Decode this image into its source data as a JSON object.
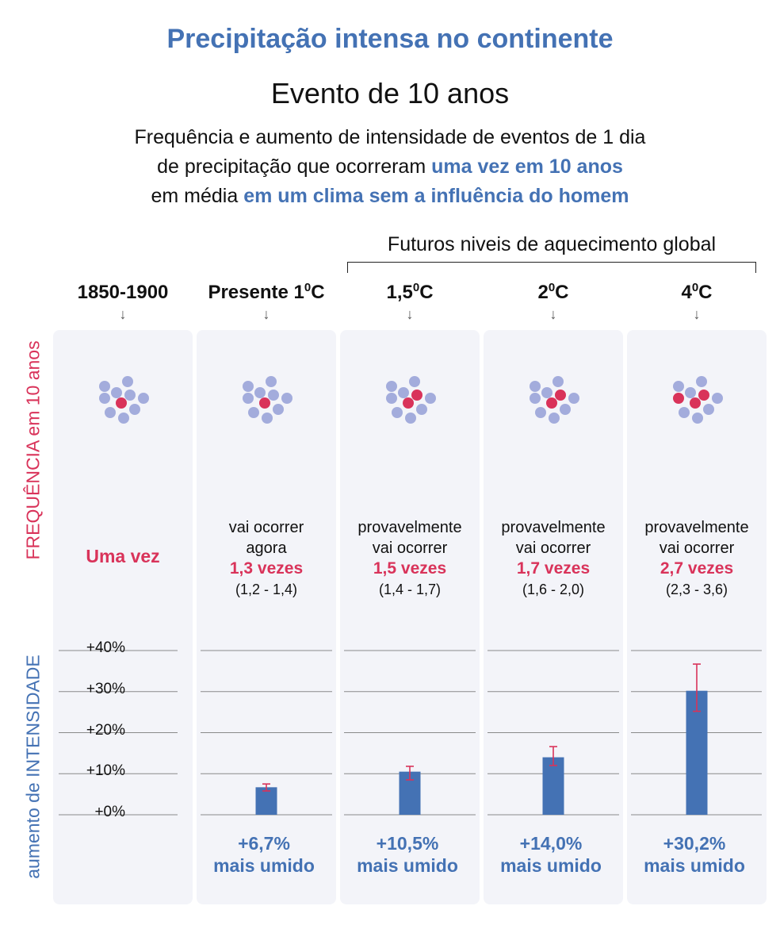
{
  "header": {
    "title": "Precipitação intensa no continente",
    "subtitle": "Evento de 10 anos",
    "description_line1": "Frequência e aumento de intensidade de eventos de 1 dia",
    "description_line2_pre": "de precipitação que ocorreram ",
    "description_line2_hl": "uma vez em 10 anos",
    "description_line3_pre": "em média ",
    "description_line3_hl": "em um clima sem a influência do homem"
  },
  "future_group_label": "Futuros niveis de aquecimento global",
  "axis_labels": {
    "frequency": "FREQUÊNCIA em 10 anos",
    "intensity": "aumento de INTENSIDADE"
  },
  "columns": [
    {
      "label": "1850-1900",
      "label_sup": "",
      "label_suffix": "",
      "arrow": "↓",
      "freq_big": "Uma vez",
      "freq_lead1": "",
      "freq_lead2": "",
      "freq_value": "",
      "freq_range": "",
      "result_pct": "",
      "result_text": ""
    },
    {
      "label": "Presente 1",
      "label_sup": "0",
      "label_suffix": "C",
      "arrow": "↓",
      "freq_big": "",
      "freq_lead1": "vai ocorrer",
      "freq_lead2": "agora",
      "freq_value": "1,3 vezes",
      "freq_range": "(1,2 - 1,4)",
      "result_pct": "+6,7%",
      "result_text": "mais umido"
    },
    {
      "label": "1,5",
      "label_sup": "0",
      "label_suffix": "C",
      "arrow": "↓",
      "freq_big": "",
      "freq_lead1": "provavelmente",
      "freq_lead2": "vai ocorrer",
      "freq_value": "1,5 vezes",
      "freq_range": "(1,4 - 1,7)",
      "result_pct": "+10,5%",
      "result_text": "mais umido"
    },
    {
      "label": "2",
      "label_sup": "0",
      "label_suffix": "C",
      "arrow": "↓",
      "freq_big": "",
      "freq_lead1": "provavelmente",
      "freq_lead2": "vai ocorrer",
      "freq_value": "1,7 vezes",
      "freq_range": "(1,6 - 2,0)",
      "result_pct": "+14,0%",
      "result_text": "mais umido"
    },
    {
      "label": "4",
      "label_sup": "0",
      "label_suffix": "C",
      "arrow": "↓",
      "freq_big": "",
      "freq_lead1": "provavelmente",
      "freq_lead2": "vai ocorrer",
      "freq_value": "2,7 vezes",
      "freq_range": "(2,3 - 3,6)",
      "result_pct": "+30,2%",
      "result_text": "mais umido"
    }
  ],
  "colors": {
    "accent_blue": "#4472b4",
    "accent_red": "#d9335a",
    "dot_neutral": "#a3acdc",
    "panel_bg": "#f3f4f9"
  },
  "chart_data": {
    "type": "bar",
    "categories": [
      "1850-1900",
      "Presente 1°C",
      "1,5°C",
      "2°C",
      "4°C"
    ],
    "series": [
      {
        "values": [
          0,
          6.7,
          10.5,
          14.0,
          30.2
        ],
        "error_low": [
          null,
          5.8,
          8.5,
          12.0,
          25.2
        ],
        "error_high": [
          null,
          7.5,
          11.8,
          16.6,
          36.7
        ]
      }
    ],
    "frequency_dots_highlighted": [
      1,
      1,
      2,
      2,
      3
    ],
    "frequency_dots_total": 10,
    "ylabel": "aumento de INTENSIDADE",
    "yticks": [
      "+0%",
      "+10%",
      "+20%",
      "+30%",
      "+40%"
    ],
    "ylim": [
      0,
      40
    ],
    "grid": true
  }
}
